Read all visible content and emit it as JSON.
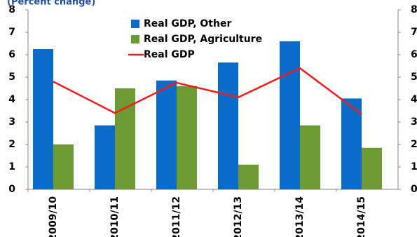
{
  "chart_data": {
    "type": "bar",
    "subtitle": "(Percent change)",
    "categories": [
      "2009/10",
      "2010/11",
      "2011/12",
      "2012/13",
      "2013/14",
      "2014/15"
    ],
    "series": [
      {
        "name": "Real GDP, Other",
        "color": "#0a6cc8",
        "values": [
          6.25,
          2.85,
          4.85,
          5.65,
          6.6,
          4.05
        ]
      },
      {
        "name": "Real GDP, Agriculture",
        "color": "#6e9a35",
        "values": [
          2.0,
          4.5,
          4.6,
          1.1,
          2.85,
          1.85
        ]
      },
      {
        "name": "Real GDP",
        "color": "#ee1c1c",
        "type": "line",
        "values": [
          4.8,
          3.4,
          4.75,
          4.1,
          5.4,
          3.35
        ]
      }
    ],
    "ylim": [
      0,
      8
    ],
    "yticks": [
      0,
      1,
      2,
      3,
      4,
      5,
      6,
      7,
      8
    ],
    "y2lim": [
      0,
      8
    ],
    "y2ticks": [
      0,
      1,
      2,
      3,
      4,
      5,
      6,
      7,
      8
    ],
    "grid": false
  }
}
